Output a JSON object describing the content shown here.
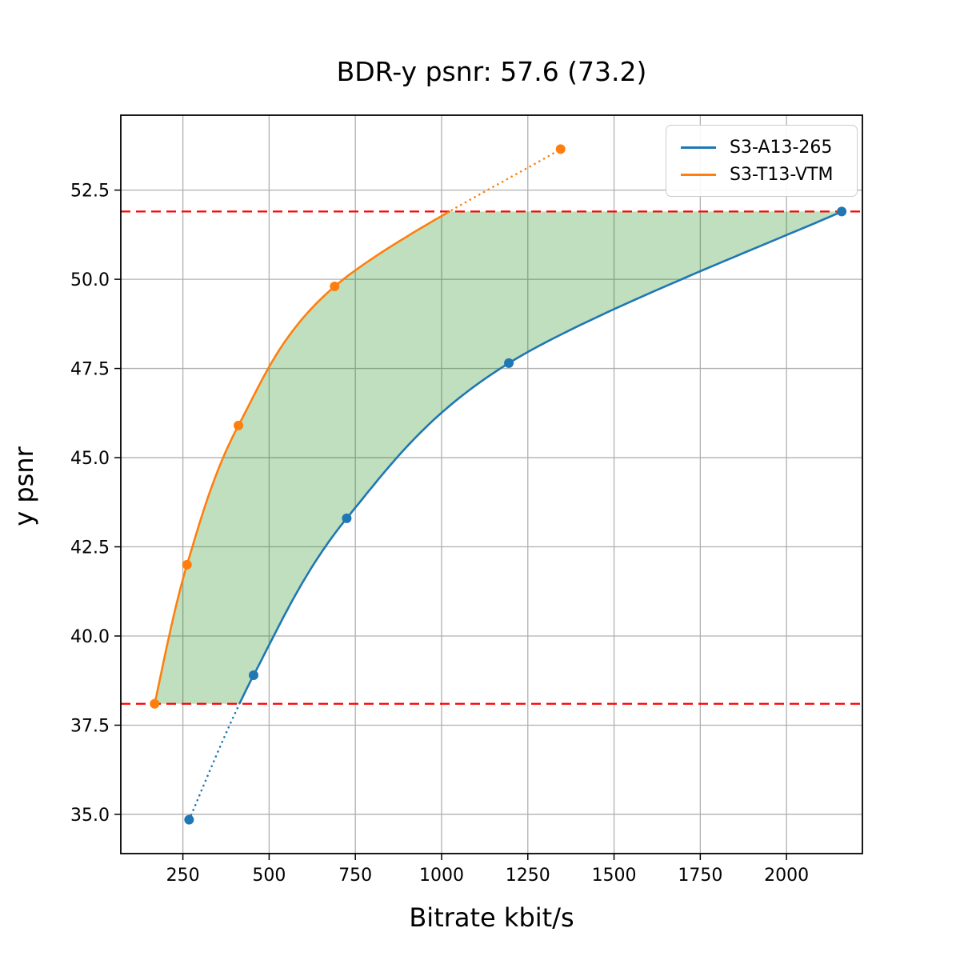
{
  "chart_data": {
    "type": "line",
    "title": "BDR-y psnr: 57.6 (73.2)",
    "xlabel": "Bitrate kbit/s",
    "ylabel": "y psnr",
    "xlim": [
      70,
      2220
    ],
    "ylim": [
      33.9,
      54.6
    ],
    "grid": true,
    "grid_color": "#b0b0b0",
    "legend_position": "upper right",
    "xticks": {
      "values": [
        250,
        500,
        750,
        1000,
        1250,
        1500,
        1750,
        2000
      ],
      "labels": [
        "250",
        "500",
        "750",
        "1000",
        "1250",
        "1500",
        "1750",
        "2000"
      ]
    },
    "yticks": {
      "values": [
        35.0,
        37.5,
        40.0,
        42.5,
        45.0,
        47.5,
        50.0,
        52.5
      ],
      "labels": [
        "35.0",
        "37.5",
        "40.0",
        "42.5",
        "45.0",
        "47.5",
        "50.0",
        "52.5"
      ]
    },
    "series": [
      {
        "name": "S3-A13-265",
        "color": "#1f77b4",
        "x": [
          268,
          455,
          725,
          1195,
          2160
        ],
        "y": [
          34.85,
          38.9,
          43.3,
          47.65,
          51.9
        ]
      },
      {
        "name": "S3-T13-VTM",
        "color": "#ff7f0e",
        "x": [
          168,
          262,
          411,
          690,
          1345
        ],
        "y": [
          38.1,
          42.0,
          45.9,
          49.8,
          53.65
        ]
      }
    ],
    "hlines": {
      "values": [
        51.9,
        38.1
      ],
      "color": "#ff0000",
      "style": "dashed"
    },
    "shaded_region": {
      "between": [
        "S3-T13-VTM",
        "S3-A13-265"
      ],
      "y_range": [
        38.1,
        51.9
      ],
      "color": "#008000",
      "alpha": 0.25
    },
    "solid_y_band": [
      38.1,
      51.9
    ],
    "bdr_psnr": "57.6",
    "bdr_psnr_alt": "73.2"
  }
}
